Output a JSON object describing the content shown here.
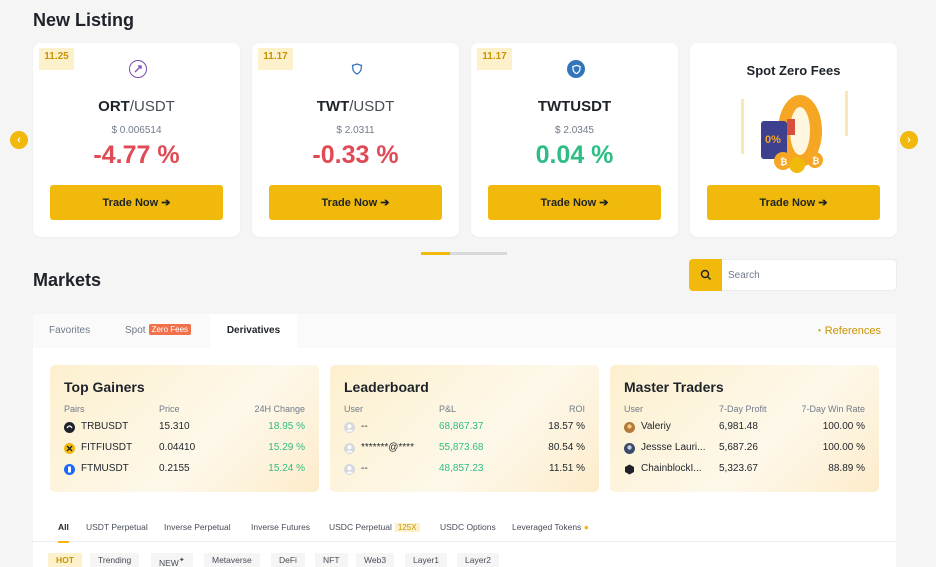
{
  "new_listing": {
    "title": "New Listing",
    "cards": [
      {
        "date": "11.25",
        "base": "ORT",
        "quote": "/USDT",
        "price": "$ 0.006514",
        "change": "-4.77 %",
        "button": "Trade Now ➔"
      },
      {
        "date": "11.17",
        "base": "TWT",
        "quote": "/USDT",
        "price": "$ 2.0311",
        "change": "-0.33 %",
        "button": "Trade Now ➔"
      },
      {
        "date": "11.17",
        "base": "TWTUSDT",
        "quote": "",
        "price": "$ 2.0345",
        "change": "0.04 %",
        "button": "Trade Now ➔"
      }
    ],
    "promo": {
      "title": "Spot Zero Fees",
      "badge": "0%",
      "button": "Trade Now ➔"
    }
  },
  "markets": {
    "title": "Markets",
    "search_placeholder": "Search",
    "tabs": [
      "Favorites",
      "Spot",
      "Derivatives"
    ],
    "spot_badge": "Zero Fees",
    "references": "References",
    "top_gainers": {
      "title": "Top Gainers",
      "headers": [
        "Pairs",
        "Price",
        "24H Change"
      ],
      "rows": [
        {
          "pair": "TRBUSDT",
          "price": "15.310",
          "change": "18.95 %"
        },
        {
          "pair": "FITFIUSDT",
          "price": "0.04410",
          "change": "15.29 %"
        },
        {
          "pair": "FTMUSDT",
          "price": "0.2155",
          "change": "15.24 %"
        }
      ]
    },
    "leaderboard": {
      "title": "Leaderboard",
      "headers": [
        "User",
        "P&L",
        "ROI"
      ],
      "rows": [
        {
          "user": "--",
          "pnl": "68,867.37",
          "roi": "18.57 %"
        },
        {
          "user": "*******@****",
          "pnl": "55,873.68",
          "roi": "80.54 %"
        },
        {
          "user": "--",
          "pnl": "48,857.23",
          "roi": "11.51 %"
        }
      ]
    },
    "master_traders": {
      "title": "Master Traders",
      "headers": [
        "User",
        "7-Day Profit",
        "7-Day Win Rate"
      ],
      "rows": [
        {
          "user": "Valeriy",
          "profit": "6,981.48",
          "win": "100.00 %"
        },
        {
          "user": "Jessse Lauri...",
          "profit": "5,687.26",
          "win": "100.00 %"
        },
        {
          "user": "ChainblockI...",
          "profit": "5,323.67",
          "win": "88.89 %"
        }
      ]
    },
    "sub_tabs": [
      "All",
      "USDT Perpetual",
      "Inverse Perpetual",
      "Inverse Futures",
      "USDC Perpetual",
      "USDC Options",
      "Leveraged Tokens"
    ],
    "usdc_badge": "125X",
    "chips": [
      "HOT",
      "Trending",
      "NEW",
      "Metaverse",
      "DeFi",
      "NFT",
      "Web3",
      "Layer1",
      "Layer2"
    ]
  },
  "colors": {
    "accent": "#f0b90b",
    "negative": "#e04a55",
    "positive": "#2ebd85"
  }
}
